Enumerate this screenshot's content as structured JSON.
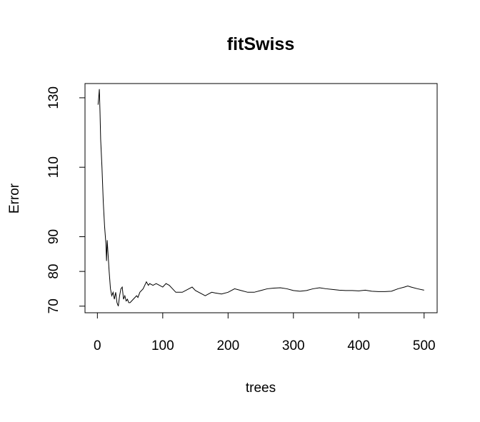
{
  "chart_data": {
    "type": "line",
    "title": "fitSwiss",
    "xlabel": "trees",
    "ylabel": "Error",
    "x": [
      1,
      2,
      3,
      4,
      5,
      7,
      9,
      11,
      13,
      14,
      15,
      16,
      18,
      20,
      22,
      24,
      26,
      28,
      30,
      32,
      34,
      36,
      38,
      40,
      42,
      44,
      46,
      48,
      50,
      55,
      60,
      62,
      65,
      70,
      75,
      78,
      80,
      85,
      90,
      95,
      100,
      105,
      110,
      115,
      120,
      130,
      140,
      145,
      150,
      160,
      165,
      170,
      175,
      180,
      190,
      200,
      210,
      220,
      230,
      240,
      250,
      260,
      270,
      280,
      290,
      300,
      310,
      320,
      330,
      340,
      350,
      360,
      370,
      380,
      390,
      400,
      410,
      420,
      430,
      440,
      450,
      460,
      470,
      475,
      480,
      490,
      500
    ],
    "series": [
      {
        "name": "Error",
        "color": "#000000",
        "values": [
          128,
          130,
          132.5,
          126,
          118,
          110,
          100,
          93,
          88,
          83,
          89,
          86,
          80,
          75,
          73,
          74,
          72,
          74,
          71,
          70,
          73,
          75,
          75.5,
          72,
          73,
          71.5,
          72,
          71,
          71,
          72,
          73,
          72.5,
          74,
          75,
          77,
          76,
          76.5,
          76,
          76.5,
          76,
          75.5,
          76.5,
          76,
          75,
          74,
          74,
          75,
          75.5,
          74.5,
          73.5,
          73,
          73.5,
          74,
          73.8,
          73.5,
          74,
          75,
          74.5,
          74,
          74,
          74.5,
          75,
          75.2,
          75.3,
          75,
          74.5,
          74.3,
          74.5,
          75,
          75.3,
          75,
          74.8,
          74.6,
          74.5,
          74.5,
          74.4,
          74.6,
          74.3,
          74.2,
          74.2,
          74.3,
          75,
          75.5,
          75.8,
          75.5,
          75,
          74.6
        ]
      }
    ],
    "xlim": [
      -18.96,
      519.96
    ],
    "ylim": [
      68.1,
      134.1
    ],
    "xticks": [
      0,
      100,
      200,
      300,
      400,
      500
    ],
    "yticks": [
      70,
      80,
      90,
      110,
      130
    ]
  }
}
